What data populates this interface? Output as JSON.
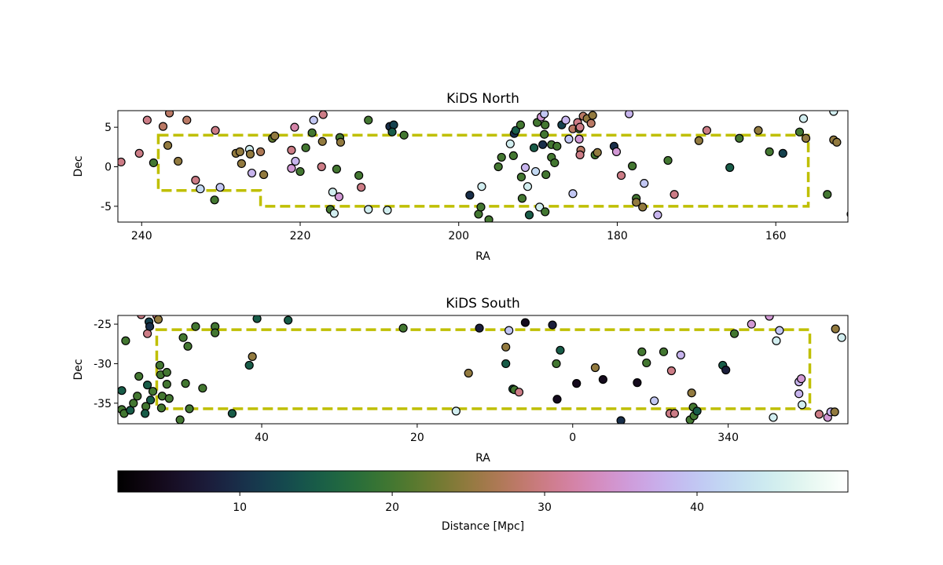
{
  "chart_data": [
    {
      "type": "scatter",
      "title": "KiDS North",
      "xlabel": "RA",
      "ylabel": "Dec",
      "xlim": [
        243,
        150.9
      ],
      "ylim": [
        -7.0,
        7.1
      ],
      "xticks": [
        240,
        220,
        200,
        180,
        160
      ],
      "yticks": [
        -5,
        0,
        5
      ],
      "colormap": "cubehelix",
      "clim": [
        2,
        49.9
      ],
      "x": [
        242.6,
        239.3,
        240.3,
        238.5,
        236.7,
        237.3,
        236.5,
        234.3,
        235.4,
        233.2,
        232.6,
        230.1,
        230.7,
        230.8,
        228.1,
        227.6,
        227.4,
        226.4,
        226.3,
        226.1,
        225.0,
        224.6,
        223.5,
        223.2,
        221.1,
        220.7,
        220.6,
        221.1,
        220.0,
        218.3,
        218.5,
        219.3,
        217.2,
        217.3,
        217.1,
        215.9,
        215.4,
        215.1,
        216.2,
        215.7,
        215.0,
        214.9,
        212.6,
        212.3,
        211.4,
        211.4,
        209.0,
        208.7,
        208.2,
        208.4,
        206.9,
        198.6,
        197.1,
        197.5,
        196.2,
        197.2,
        195.0,
        194.6,
        193.5,
        193.0,
        193.1,
        192.8,
        192.1,
        191.6,
        192.2,
        192.0,
        191.3,
        191.1,
        190.5,
        190.3,
        190.1,
        189.6,
        189.2,
        189.4,
        189.1,
        189.2,
        189.8,
        189.0,
        189.1,
        188.3,
        187.9,
        188.3,
        187.6,
        187.0,
        186.5,
        186.1,
        185.6,
        185.6,
        185.0,
        184.8,
        184.8,
        184.6,
        184.7,
        184.3,
        183.8,
        183.3,
        183.1,
        182.8,
        182.5,
        184.7,
        180.4,
        180.1,
        178.5,
        179.5,
        178.1,
        177.6,
        177.6,
        176.8,
        176.6,
        174.9,
        173.6,
        172.8,
        169.7,
        168.7,
        165.8,
        164.6,
        162.2,
        160.8,
        159.1,
        157.0,
        156.5,
        156.2,
        153.5,
        152.7,
        152.3,
        152.7,
        150.5
      ],
      "values": [
        0.6,
        5.9,
        1.7,
        0.5,
        2.7,
        5.1,
        6.8,
        5.9,
        0.7,
        -1.7,
        -2.8,
        -2.6,
        4.6,
        -4.2,
        1.7,
        1.9,
        0.4,
        2.2,
        1.6,
        -0.8,
        1.9,
        -1.0,
        3.6,
        3.9,
        2.1,
        5.0,
        0.7,
        -0.2,
        -0.6,
        5.9,
        4.3,
        2.4,
        3.2,
        0,
        6.6,
        -3.2,
        -0.3,
        -3.8,
        -5.4,
        -5.9,
        3.7,
        3.1,
        -1.1,
        -2.6,
        5.9,
        -5.4,
        -5.5,
        5.1,
        5.3,
        4.4,
        4.0,
        -3.6,
        -2.5,
        -6.0,
        -6.7,
        -5.1,
        0,
        1.2,
        2.9,
        4.2,
        1.4,
        4.6,
        -1.3,
        -0.1,
        5.3,
        -4.0,
        -2.5,
        -6.1,
        2.4,
        -0.6,
        5.6,
        6.3,
        4.1,
        2.8,
        5.3,
        6.7,
        -5.1,
        -1.0,
        -5.7,
        1.2,
        0.5,
        2.8,
        2.6,
        5.3,
        5.9,
        3.5,
        4.8,
        -3.4,
        5.6,
        3.5,
        4.8,
        2.1,
        1.5,
        6.4,
        6.1,
        5.5,
        6.5,
        1.5,
        1.8,
        5.0,
        2.6,
        1.9,
        6.7,
        -1.1,
        0.1,
        -4.0,
        -4.5,
        -5.1,
        -2.1,
        -6.1,
        0.8,
        -3.5,
        3.3,
        4.6,
        -0.1,
        3.6,
        4.6,
        1.9,
        1.7,
        4.4,
        6.1,
        3.6,
        -3.5,
        3.4,
        3.1,
        7.0,
        -6.0
      ],
      "distance": [
        30,
        30,
        30,
        20,
        25,
        28,
        28,
        28,
        25,
        30,
        42,
        40,
        30,
        20,
        25,
        25,
        25,
        45,
        25,
        38,
        27,
        25,
        22,
        25,
        30,
        32,
        38,
        35,
        20,
        40,
        20,
        20,
        25,
        30,
        30,
        45,
        20,
        35,
        20,
        45,
        20,
        25,
        20,
        30,
        20,
        45,
        45,
        10,
        12,
        15,
        20,
        10,
        45,
        20,
        20,
        20,
        20,
        20,
        45,
        10,
        20,
        15,
        20,
        38,
        20,
        20,
        45,
        15,
        15,
        42,
        20,
        35,
        20,
        10,
        20,
        40,
        45,
        20,
        20,
        20,
        20,
        20,
        20,
        12,
        38,
        40,
        28,
        40,
        30,
        35,
        20,
        28,
        30,
        28,
        25,
        28,
        25,
        20,
        25,
        30,
        10,
        35,
        38,
        30,
        20,
        20,
        25,
        25,
        40,
        38,
        20,
        30,
        25,
        30,
        15,
        20,
        25,
        20,
        12,
        20,
        45,
        25,
        20,
        25,
        25,
        45,
        45
      ],
      "footprint": {
        "x": [
          237.9,
          155.9,
          155.9,
          225,
          225,
          237.9
        ],
        "y": [
          4,
          4,
          -5,
          -5,
          -3,
          -3
        ],
        "color": "#bfbf00"
      }
    },
    {
      "type": "scatter",
      "title": "KiDS South",
      "xlabel": "RA",
      "ylabel": "Dec",
      "xlim": [
        58.5,
        -35.4
      ],
      "ylim": [
        -37.6,
        -23.9
      ],
      "xticks": [
        40,
        20,
        0,
        {
          "value": -20,
          "label": "340"
        }
      ],
      "yticks": [
        -35,
        -30,
        -25
      ],
      "colormap": "cubehelix",
      "clim": [
        2,
        49.9
      ],
      "x": [
        58.0,
        57.5,
        58.0,
        57.7,
        56.9,
        56.5,
        56.0,
        55.8,
        55.5,
        54.9,
        55.0,
        54.7,
        54.7,
        54.5,
        54.4,
        54.3,
        54.0,
        53.5,
        53.3,
        53.1,
        53.0,
        52.9,
        52.8,
        52.2,
        52.2,
        51.9,
        50.5,
        50.1,
        49.5,
        49.8,
        49.3,
        48.5,
        47.6,
        46.0,
        46.0,
        43.8,
        41.6,
        41.2,
        40.6,
        36.6,
        21.8,
        15.0,
        13.4,
        12.0,
        8.2,
        8.6,
        8.6,
        7.7,
        7.5,
        6.9,
        6.1,
        2.6,
        1.6,
        2.1,
        2.0,
        -0.5,
        -2.9,
        -3.9,
        -6.2,
        -8.3,
        -8.9,
        -9.5,
        -10.5,
        -11.7,
        -12.5,
        -12.7,
        -13.1,
        -13.9,
        -15.1,
        -15.3,
        -15.5,
        -15.6,
        -16.0,
        -19.3,
        -19.7,
        -20.8,
        -23.0,
        -25.3,
        -25.8,
        -26.2,
        -26.6,
        -29.1,
        -29.4,
        -29.1,
        -29.5,
        -31.7,
        -32.8,
        -33.2,
        -33.7,
        -33.8,
        -34.6
      ],
      "values": [
        -33.4,
        -27.1,
        -35.8,
        -36.3,
        -35.9,
        -35.0,
        -34.1,
        -31.6,
        -23.8,
        -35.4,
        -36.3,
        -32.7,
        -26.2,
        -24.7,
        -25.3,
        -34.6,
        -33.5,
        -23.9,
        -24.4,
        -30.2,
        -31.4,
        -35.6,
        -34.1,
        -32.6,
        -31.1,
        -34.4,
        -37.1,
        -26.7,
        -27.8,
        -32.5,
        -35.7,
        -25.3,
        -33.1,
        -25.3,
        -26.1,
        -36.3,
        -30.2,
        -29.1,
        -24.3,
        -24.5,
        -25.5,
        -36.0,
        -31.2,
        -25.5,
        -25.8,
        -27.9,
        -30.0,
        -33.2,
        -33.3,
        -33.6,
        -24.8,
        -25.1,
        -28.3,
        -30.0,
        -34.5,
        -32.5,
        -30.5,
        -32.0,
        -37.2,
        -32.4,
        -28.5,
        -29.9,
        -34.7,
        -28.5,
        -36.3,
        -30.9,
        -36.3,
        -28.9,
        -37.1,
        -33.7,
        -35.5,
        -36.6,
        -36.0,
        -30.2,
        -30.8,
        -26.2,
        -25.0,
        -24.0,
        -36.8,
        -27.1,
        -25.8,
        -32.3,
        -31.9,
        -33.8,
        -35.2,
        -36.4,
        -36.8,
        -36.1,
        -36.1,
        -25.6,
        -26.7
      ],
      "distance": [
        15,
        20,
        20,
        20,
        15,
        20,
        20,
        20,
        30,
        20,
        15,
        15,
        30,
        12,
        10,
        15,
        20,
        30,
        25,
        20,
        20,
        20,
        20,
        20,
        20,
        20,
        20,
        20,
        20,
        20,
        20,
        20,
        20,
        20,
        20,
        15,
        15,
        25,
        15,
        15,
        20,
        45,
        25,
        8,
        40,
        25,
        15,
        15,
        20,
        30,
        5,
        8,
        15,
        20,
        5,
        5,
        25,
        5,
        10,
        5,
        20,
        20,
        40,
        20,
        30,
        30,
        30,
        38,
        20,
        25,
        20,
        20,
        15,
        15,
        8,
        20,
        35,
        35,
        45,
        45,
        40,
        38,
        35,
        38,
        45,
        30,
        35,
        38,
        25,
        25,
        45
      ],
      "footprint": {
        "x": [
          53.5,
          -30.5,
          -30.5,
          53.5
        ],
        "y": [
          -25.7,
          -25.7,
          -35.7,
          -35.7
        ],
        "color": "#bfbf00"
      }
    },
    {
      "type": "colorbar",
      "label": "Distance [Mpc]",
      "colormap": "cubehelix",
      "xlim": [
        2,
        49.9
      ],
      "xticks": [
        10,
        20,
        30,
        40
      ]
    }
  ]
}
